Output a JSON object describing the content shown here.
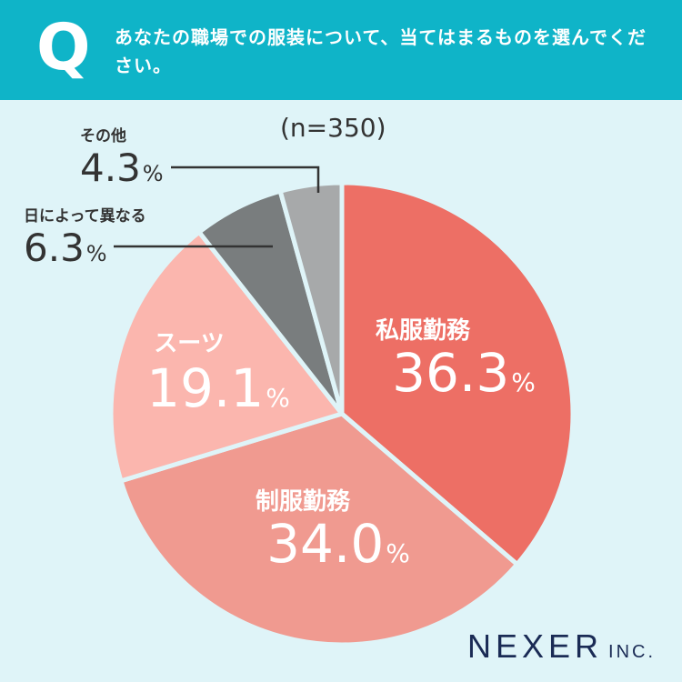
{
  "header": {
    "q_mark": "Q",
    "question": "あなたの職場での服装について、当てはまるものを選んでください。"
  },
  "sample_size": "(n=350)",
  "brand": {
    "main": "NEXER",
    "suffix": "INC."
  },
  "colors": {
    "header_bg": "#0fb4c8",
    "background": "#dff4f8",
    "text_dark": "#333333"
  },
  "chart_data": {
    "type": "pie",
    "unit": "%",
    "slices": [
      {
        "label": "私服勤務",
        "value": 36.3,
        "value_text": "36.3",
        "color": "#ed6f65",
        "text_color": "#ffffff"
      },
      {
        "label": "制服勤務",
        "value": 34.0,
        "value_text": "34.0",
        "color": "#f09a90",
        "text_color": "#ffffff"
      },
      {
        "label": "スーツ",
        "value": 19.1,
        "value_text": "19.1",
        "color": "#fbb6ae",
        "text_color": "#ffffff"
      },
      {
        "label": "日によって異なる",
        "value": 6.3,
        "value_text": "6.3",
        "color": "#797d7e",
        "text_color": "#333333"
      },
      {
        "label": "その他",
        "value": 4.3,
        "value_text": "4.3",
        "color": "#a7a9aa",
        "text_color": "#333333"
      }
    ]
  }
}
